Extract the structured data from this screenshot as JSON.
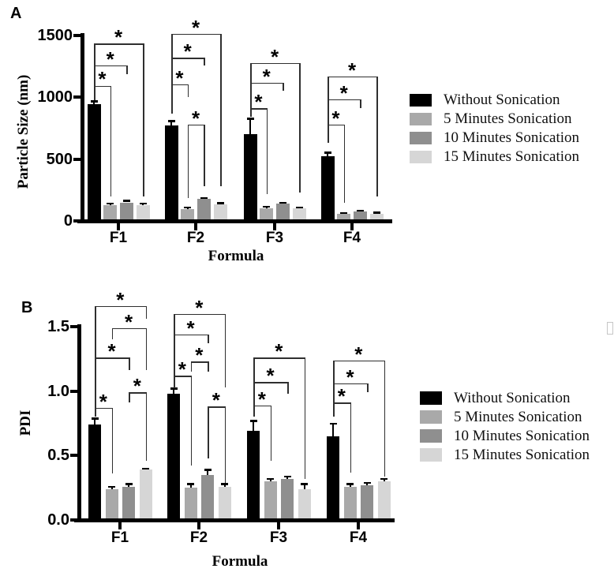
{
  "colors": {
    "axis": "#000000",
    "bracket": "#2f2f2f",
    "error_bar": "#000000",
    "background": "#ffffff",
    "artifact_gray": "#c6c6c6"
  },
  "chart_data": [
    {
      "type": "bar",
      "panel_label": "A",
      "ylabel": "Particle Size (nm)",
      "xlabel": "Formula",
      "ylim": [
        0,
        1500
      ],
      "yticks": [
        0,
        500,
        1000,
        1500
      ],
      "ytick_labels": [
        "0",
        "500",
        "1000",
        "1500"
      ],
      "categories": [
        "F1",
        "F2",
        "F3",
        "F4"
      ],
      "grid": false,
      "legend_position": "right",
      "series": [
        {
          "name": "Without Sonication",
          "color": "#000000",
          "values": [
            945,
            770,
            700,
            525
          ],
          "errors": [
            25,
            40,
            130,
            30
          ]
        },
        {
          "name": "5 Minutes Sonication",
          "color": "#a9a9a9",
          "values": [
            125,
            95,
            100,
            58
          ],
          "errors": [
            18,
            15,
            18,
            8
          ]
        },
        {
          "name": "10 Minutes Sonication",
          "color": "#8f8f8f",
          "values": [
            150,
            178,
            140,
            78
          ],
          "errors": [
            15,
            10,
            10,
            8
          ]
        },
        {
          "name": "15 Minutes Sonication",
          "color": "#d6d6d6",
          "values": [
            128,
            135,
            102,
            60
          ],
          "errors": [
            15,
            10,
            8,
            8
          ]
        }
      ],
      "significance_brackets": [
        {
          "group": 0,
          "a": 0,
          "b": 1,
          "label": "*",
          "y": 1095,
          "drop_a": 980,
          "drop_b": 197
        },
        {
          "group": 0,
          "a": 0,
          "b": 2,
          "label": "*",
          "y": 1260,
          "drop_a": 980,
          "drop_b": 1185
        },
        {
          "group": 0,
          "a": 0,
          "b": 3,
          "label": "*",
          "y": 1435,
          "drop_a": 980,
          "drop_b": 197
        },
        {
          "group": 1,
          "a": 0,
          "b": 1,
          "label": "*",
          "y": 1105,
          "drop_a": 865,
          "drop_b": 1000
        },
        {
          "group": 1,
          "a": 0,
          "b": 2,
          "label": "*",
          "y": 1320,
          "drop_a": 865,
          "drop_b": 1260
        },
        {
          "group": 1,
          "a": 0,
          "b": 3,
          "label": "*",
          "y": 1515,
          "drop_a": 865,
          "drop_b": 280
        },
        {
          "group": 1,
          "a": 1,
          "b": 2,
          "label": "*",
          "y": 780,
          "drop_a": 185,
          "drop_b": 280
        },
        {
          "group": 2,
          "a": 0,
          "b": 1,
          "label": "*",
          "y": 910,
          "drop_a": 845,
          "drop_b": 215
        },
        {
          "group": 2,
          "a": 0,
          "b": 2,
          "label": "*",
          "y": 1120,
          "drop_a": 845,
          "drop_b": 1055
        },
        {
          "group": 2,
          "a": 0,
          "b": 3,
          "label": "*",
          "y": 1280,
          "drop_a": 845,
          "drop_b": 230
        },
        {
          "group": 3,
          "a": 0,
          "b": 1,
          "label": "*",
          "y": 780,
          "drop_a": 630,
          "drop_b": 145
        },
        {
          "group": 3,
          "a": 0,
          "b": 2,
          "label": "*",
          "y": 985,
          "drop_a": 630,
          "drop_b": 915
        },
        {
          "group": 3,
          "a": 0,
          "b": 3,
          "label": "*",
          "y": 1170,
          "drop_a": 630,
          "drop_b": 200
        }
      ]
    },
    {
      "type": "bar",
      "panel_label": "B",
      "ylabel": "PDI",
      "xlabel": "Formula",
      "ylim": [
        0,
        1.5
      ],
      "yticks": [
        0,
        0.5,
        1.0,
        1.5
      ],
      "ytick_labels": [
        "0.0",
        "0.5",
        "1.0",
        "1.5"
      ],
      "categories": [
        "F1",
        "F2",
        "F3",
        "F4"
      ],
      "grid": false,
      "legend_position": "right",
      "series": [
        {
          "name": "Without Sonication",
          "color": "#000000",
          "values": [
            0.74,
            0.98,
            0.69,
            0.65
          ],
          "errors": [
            0.05,
            0.04,
            0.08,
            0.1
          ]
        },
        {
          "name": "5 Minutes Sonication",
          "color": "#a9a9a9",
          "values": [
            0.24,
            0.25,
            0.3,
            0.26
          ],
          "errors": [
            0.02,
            0.03,
            0.02,
            0.02
          ]
        },
        {
          "name": "10 Minutes Sonication",
          "color": "#8f8f8f",
          "values": [
            0.26,
            0.35,
            0.32,
            0.27
          ],
          "errors": [
            0.02,
            0.04,
            0.02,
            0.02
          ]
        },
        {
          "name": "15 Minutes Sonication",
          "color": "#d6d6d6",
          "values": [
            0.39,
            0.26,
            0.24,
            0.3
          ],
          "errors": [
            0.01,
            0.02,
            0.04,
            0.02
          ]
        }
      ],
      "significance_brackets": [
        {
          "group": 0,
          "a": 0,
          "b": 1,
          "label": "*",
          "y": 0.87,
          "drop_a": 0.8,
          "drop_b": 0.36
        },
        {
          "group": 0,
          "a": 0,
          "b": 2,
          "label": "*",
          "y": 1.26,
          "drop_a": 0.8,
          "drop_b": 1.16
        },
        {
          "group": 0,
          "a": 0,
          "b": 3,
          "label": "*",
          "y": 1.66,
          "drop_a": 0.8,
          "drop_b": 1.56
        },
        {
          "group": 0,
          "a": 1,
          "b": 3,
          "label": "*",
          "y": 1.49,
          "drop_a": 1.4,
          "drop_b": 1.16
        },
        {
          "group": 0,
          "a": 2,
          "b": 3,
          "label": "*",
          "y": 0.99,
          "drop_a": 0.91,
          "drop_b": 0.46
        },
        {
          "group": 1,
          "a": 0,
          "b": 1,
          "label": "*",
          "y": 1.12,
          "drop_a": 1.02,
          "drop_b": 0.42
        },
        {
          "group": 1,
          "a": 0,
          "b": 2,
          "label": "*",
          "y": 1.44,
          "drop_a": 1.02,
          "drop_b": 1.37
        },
        {
          "group": 1,
          "a": 0,
          "b": 3,
          "label": "*",
          "y": 1.6,
          "drop_a": 1.02,
          "drop_b": 1.03
        },
        {
          "group": 1,
          "a": 1,
          "b": 2,
          "label": "*",
          "y": 1.23,
          "drop_a": 1.15,
          "drop_b": 1.15
        },
        {
          "group": 1,
          "a": 2,
          "b": 3,
          "label": "*",
          "y": 0.88,
          "drop_a": 0.48,
          "drop_b": 0.29
        },
        {
          "group": 2,
          "a": 0,
          "b": 1,
          "label": "*",
          "y": 0.89,
          "drop_a": 0.8,
          "drop_b": 0.46
        },
        {
          "group": 2,
          "a": 0,
          "b": 2,
          "label": "*",
          "y": 1.07,
          "drop_a": 0.8,
          "drop_b": 0.98
        },
        {
          "group": 2,
          "a": 0,
          "b": 3,
          "label": "*",
          "y": 1.26,
          "drop_a": 0.8,
          "drop_b": 0.32
        },
        {
          "group": 3,
          "a": 0,
          "b": 1,
          "label": "*",
          "y": 0.91,
          "drop_a": 0.8,
          "drop_b": 0.37
        },
        {
          "group": 3,
          "a": 0,
          "b": 2,
          "label": "*",
          "y": 1.06,
          "drop_a": 0.8,
          "drop_b": 0.99
        },
        {
          "group": 3,
          "a": 0,
          "b": 3,
          "label": "*",
          "y": 1.24,
          "drop_a": 0.8,
          "drop_b": 0.34
        }
      ]
    }
  ]
}
